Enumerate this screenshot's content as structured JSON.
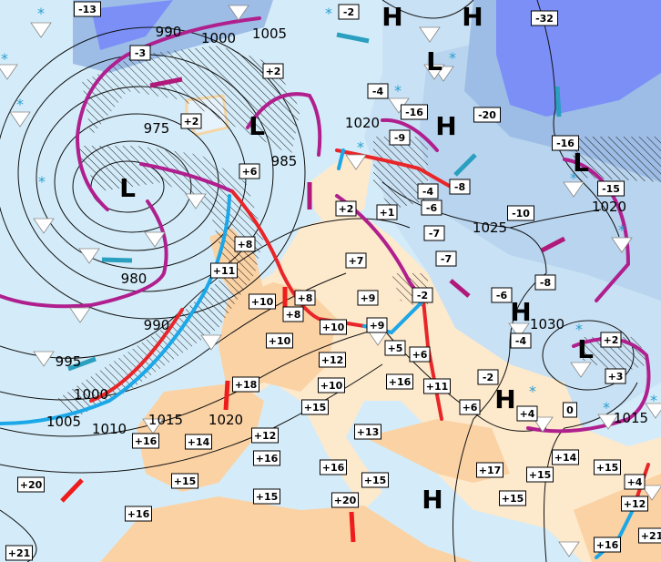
{
  "map": {
    "colors": {
      "sea": "#d4ecf9",
      "land_warm": "#fbd2a4",
      "land_mild": "#fde9cc",
      "cold_light": "#b8d4ee",
      "cold_mid": "#9dbde6",
      "cold_deep": "#7b8ff7",
      "occluded_front": "#b01f8e",
      "warm_front": "#e8262a",
      "cold_front": "#1ba7e8",
      "cold_arrow": "#2a9fc0",
      "warm_arrow": "#ee1c1c",
      "mixed_arrow": "#b0197a"
    },
    "temperatures": [
      "-13",
      "-3",
      "+2",
      "+2",
      "+6",
      "+8",
      "+11",
      "-2",
      "-4",
      "-16",
      "-9",
      "-20",
      "-32",
      "-16",
      "-15",
      "-8",
      "-4",
      "-6",
      "-10",
      "-7",
      "-7",
      "-8",
      "+2",
      "+1",
      "+7",
      "+9",
      "-2",
      "-6",
      "+10",
      "+8",
      "+8",
      "+10",
      "+9",
      "+10",
      "+5",
      "+6",
      "+12",
      "+16",
      "+11",
      "-2",
      "-4",
      "+2",
      "+3",
      "+18",
      "+10",
      "+15",
      "+6",
      "+4",
      "0",
      "+16",
      "+14",
      "+12",
      "+16",
      "+13",
      "+15",
      "+16",
      "+15",
      "+17",
      "+14",
      "+15",
      "+15",
      "+4",
      "+12",
      "+20",
      "+15",
      "+20",
      "+15",
      "+16",
      "+21",
      "+16",
      "+21"
    ],
    "isobars": [
      "990",
      "1000",
      "1005",
      "975",
      "985",
      "980",
      "990",
      "995",
      "1000",
      "1005",
      "1010",
      "1015",
      "1020",
      "1020",
      "1025",
      "1020",
      "1030",
      "1015"
    ],
    "pressure_centers": [
      "H",
      "H",
      "L",
      "H",
      "L",
      "L",
      "L",
      "H",
      "H",
      "L",
      "H"
    ],
    "symbols": {
      "snow": "snowflake-icon",
      "shower": "shower-triangle-icon",
      "rain": "raindrop-icon"
    }
  }
}
